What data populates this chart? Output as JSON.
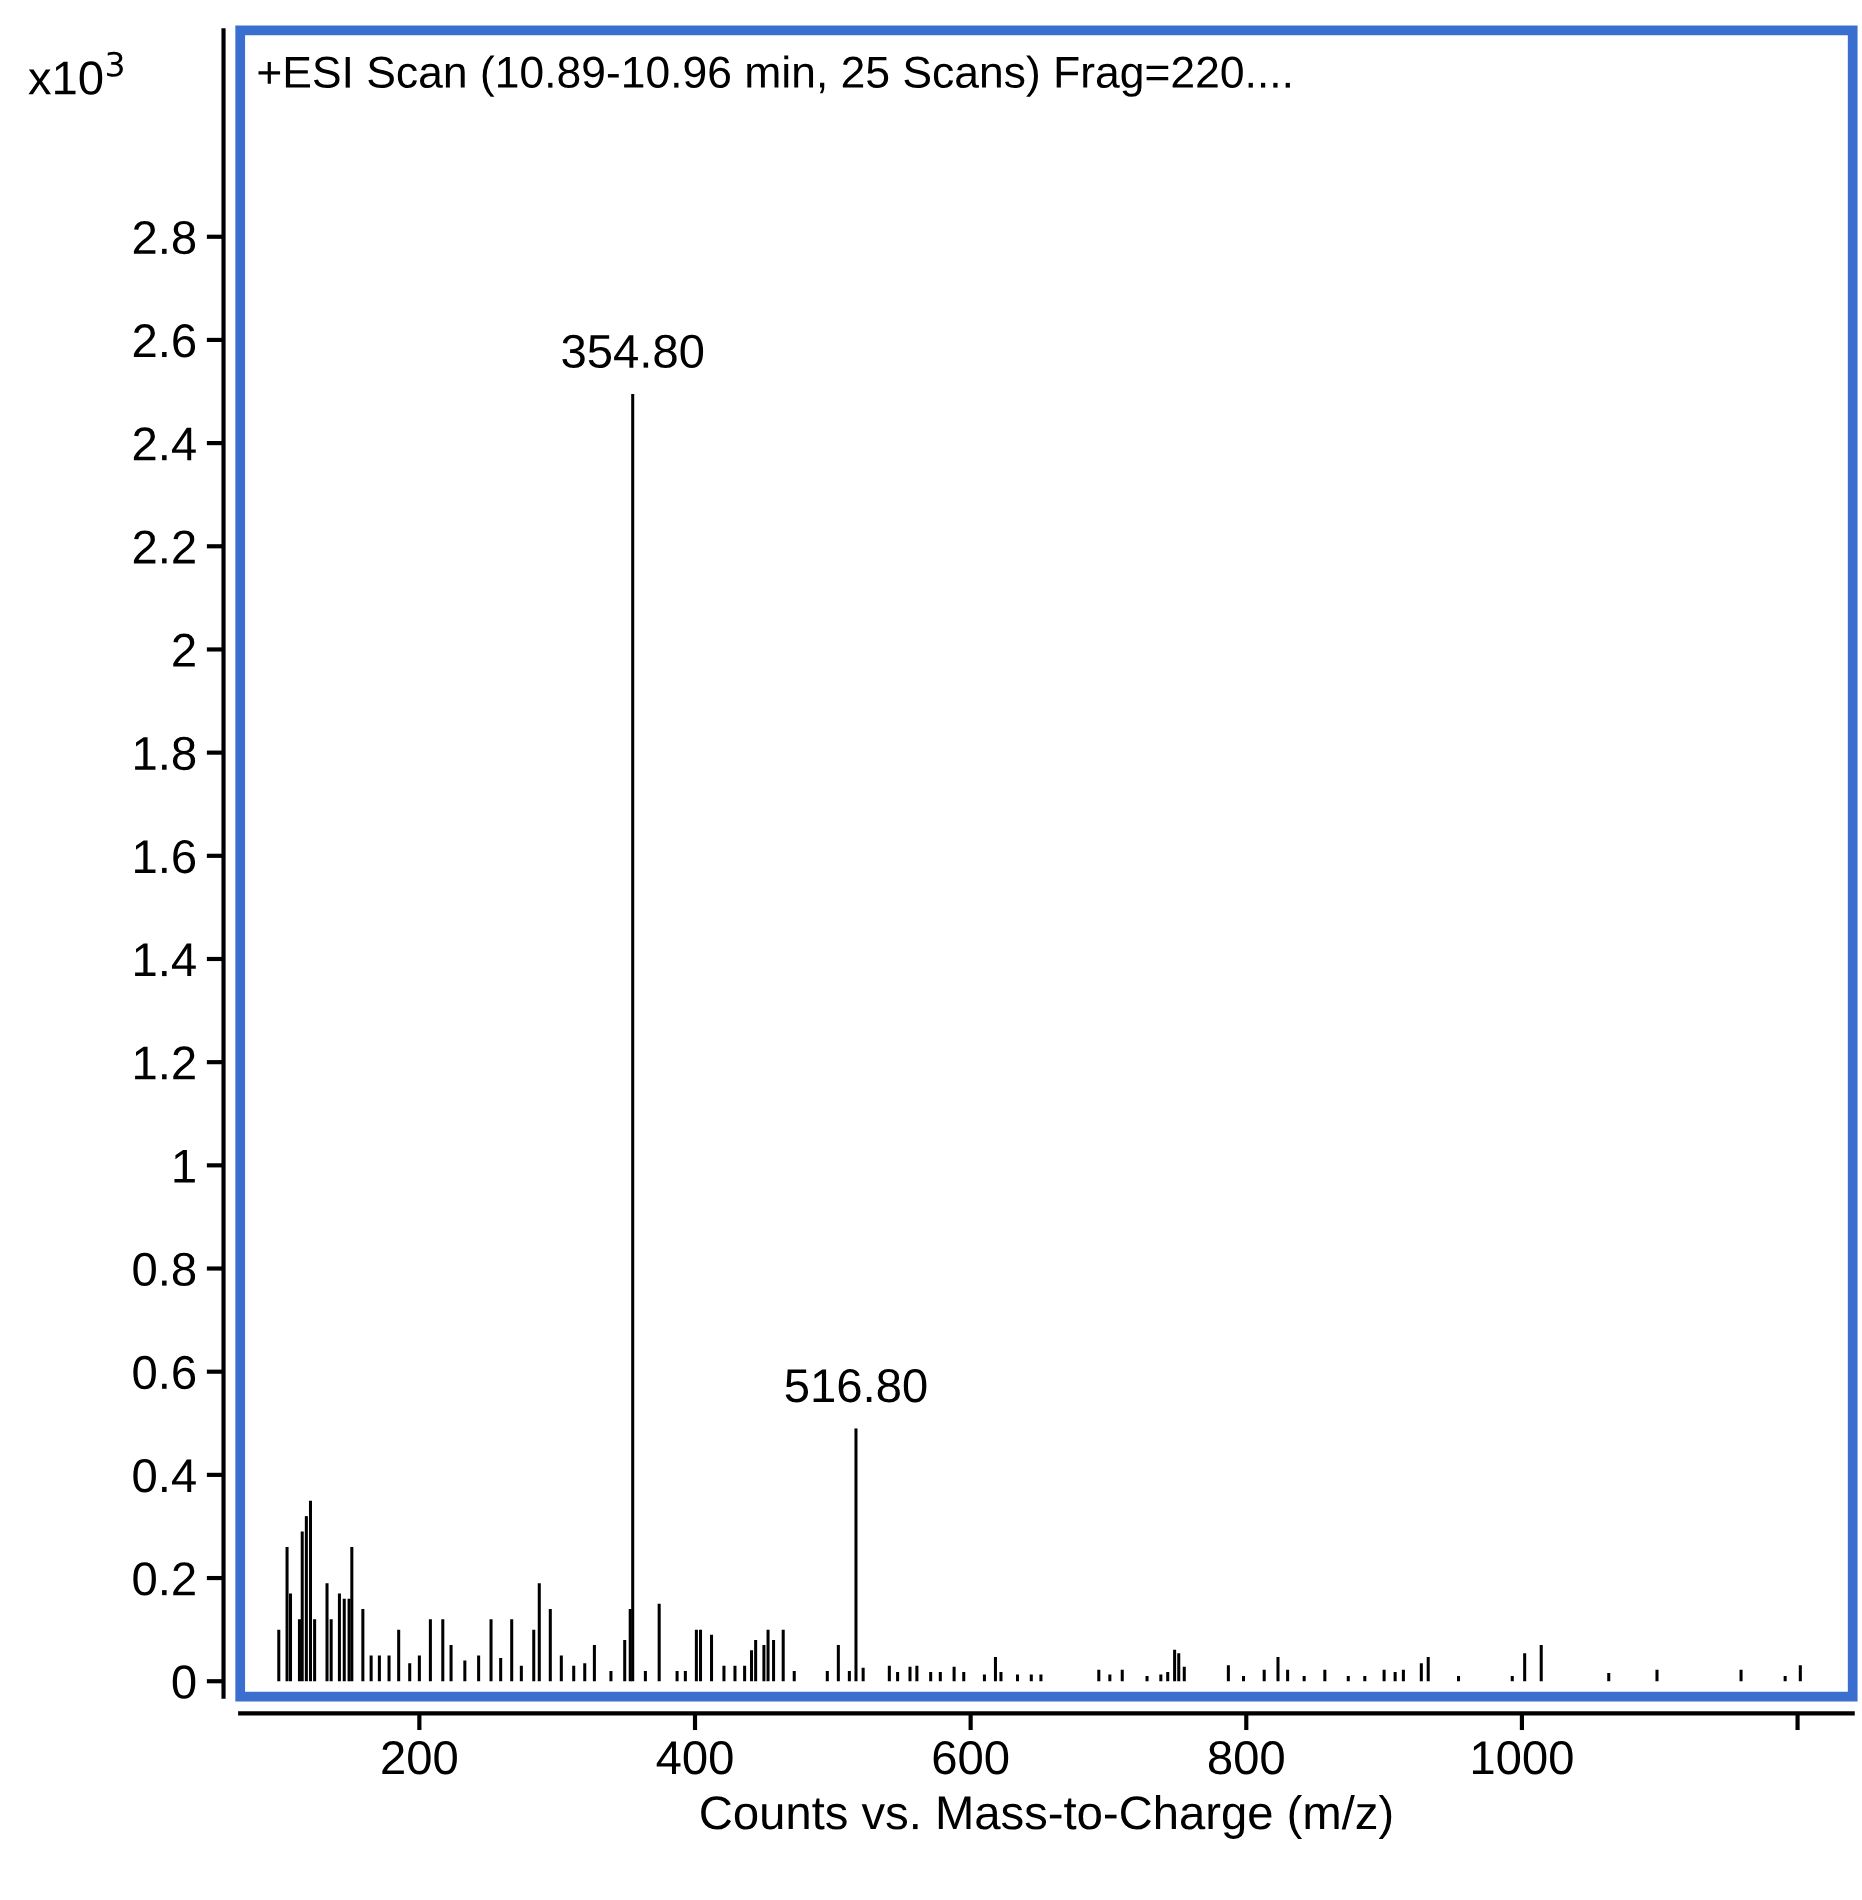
{
  "chart_data": {
    "type": "bar",
    "title": "+ESI Scan (10.89-10.96 min, 25 Scans) Frag=220....",
    "xlabel": "Counts vs. Mass-to-Charge (m/z)",
    "ylabel": "x10$^{3}$",
    "x": [
      98,
      104,
      106.5,
      113,
      115,
      118,
      121,
      124,
      133,
      136,
      142,
      145.5,
      149,
      151,
      159,
      165,
      171,
      178,
      185,
      193,
      200,
      208,
      217,
      223,
      233,
      243,
      252,
      259,
      267,
      274,
      283,
      287,
      295,
      303,
      312,
      320,
      327,
      339,
      349,
      353,
      354.8,
      364,
      374,
      387,
      393,
      401,
      404,
      412,
      421,
      429,
      436,
      441,
      444,
      450,
      453,
      457,
      464,
      472,
      496,
      504,
      512,
      516.8,
      522,
      541,
      547,
      556,
      561,
      571,
      578,
      588,
      595,
      610,
      618,
      622,
      634,
      644,
      651,
      693,
      701,
      710,
      728,
      738,
      743,
      748,
      751,
      755,
      787,
      798,
      813,
      823,
      830,
      842,
      857,
      874,
      886,
      900,
      908,
      914,
      927,
      932,
      954,
      993,
      1002,
      1014,
      1063,
      1098,
      1159,
      1191,
      1202
    ],
    "values": [
      0.1,
      0.26,
      0.17,
      0.12,
      0.29,
      0.32,
      0.35,
      0.12,
      0.19,
      0.12,
      0.17,
      0.16,
      0.16,
      0.26,
      0.14,
      0.05,
      0.05,
      0.05,
      0.1,
      0.035,
      0.05,
      0.12,
      0.12,
      0.07,
      0.04,
      0.05,
      0.12,
      0.045,
      0.12,
      0.03,
      0.1,
      0.19,
      0.14,
      0.05,
      0.03,
      0.035,
      0.07,
      0.02,
      0.08,
      0.14,
      2.495,
      0.02,
      0.15,
      0.02,
      0.02,
      0.1,
      0.1,
      0.09,
      0.03,
      0.03,
      0.03,
      0.06,
      0.08,
      0.07,
      0.1,
      0.08,
      0.1,
      0.02,
      0.02,
      0.07,
      0.02,
      0.49,
      0.026,
      0.03,
      0.018,
      0.028,
      0.03,
      0.018,
      0.018,
      0.028,
      0.018,
      0.013,
      0.047,
      0.018,
      0.013,
      0.013,
      0.013,
      0.022,
      0.013,
      0.022,
      0.01,
      0.013,
      0.018,
      0.061,
      0.054,
      0.028,
      0.031,
      0.01,
      0.022,
      0.047,
      0.022,
      0.01,
      0.022,
      0.01,
      0.01,
      0.022,
      0.018,
      0.022,
      0.035,
      0.047,
      0.01,
      0.01,
      0.054,
      0.07,
      0.016,
      0.022,
      0.022,
      0.01,
      0.031
    ],
    "color": "#000000",
    "annotations": [
      {
        "text": "354.80",
        "x": 354.8,
        "y": 2.495
      },
      {
        "text": "516.80",
        "x": 516.8,
        "y": 0.49
      }
    ],
    "xlim": [
      70,
      1240
    ],
    "ylim": [
      -0.03,
      3.2
    ],
    "xticks": [
      200,
      400,
      600,
      800,
      1000,
      {
        "value": 1200,
        "label": null
      }
    ],
    "yticks": [
      0,
      0.2,
      0.4,
      0.6,
      0.8,
      1,
      1.2,
      1.4,
      1.6,
      1.8,
      2,
      2.2,
      2.4,
      2.6,
      2.8
    ],
    "grid": false,
    "legend": false
  }
}
